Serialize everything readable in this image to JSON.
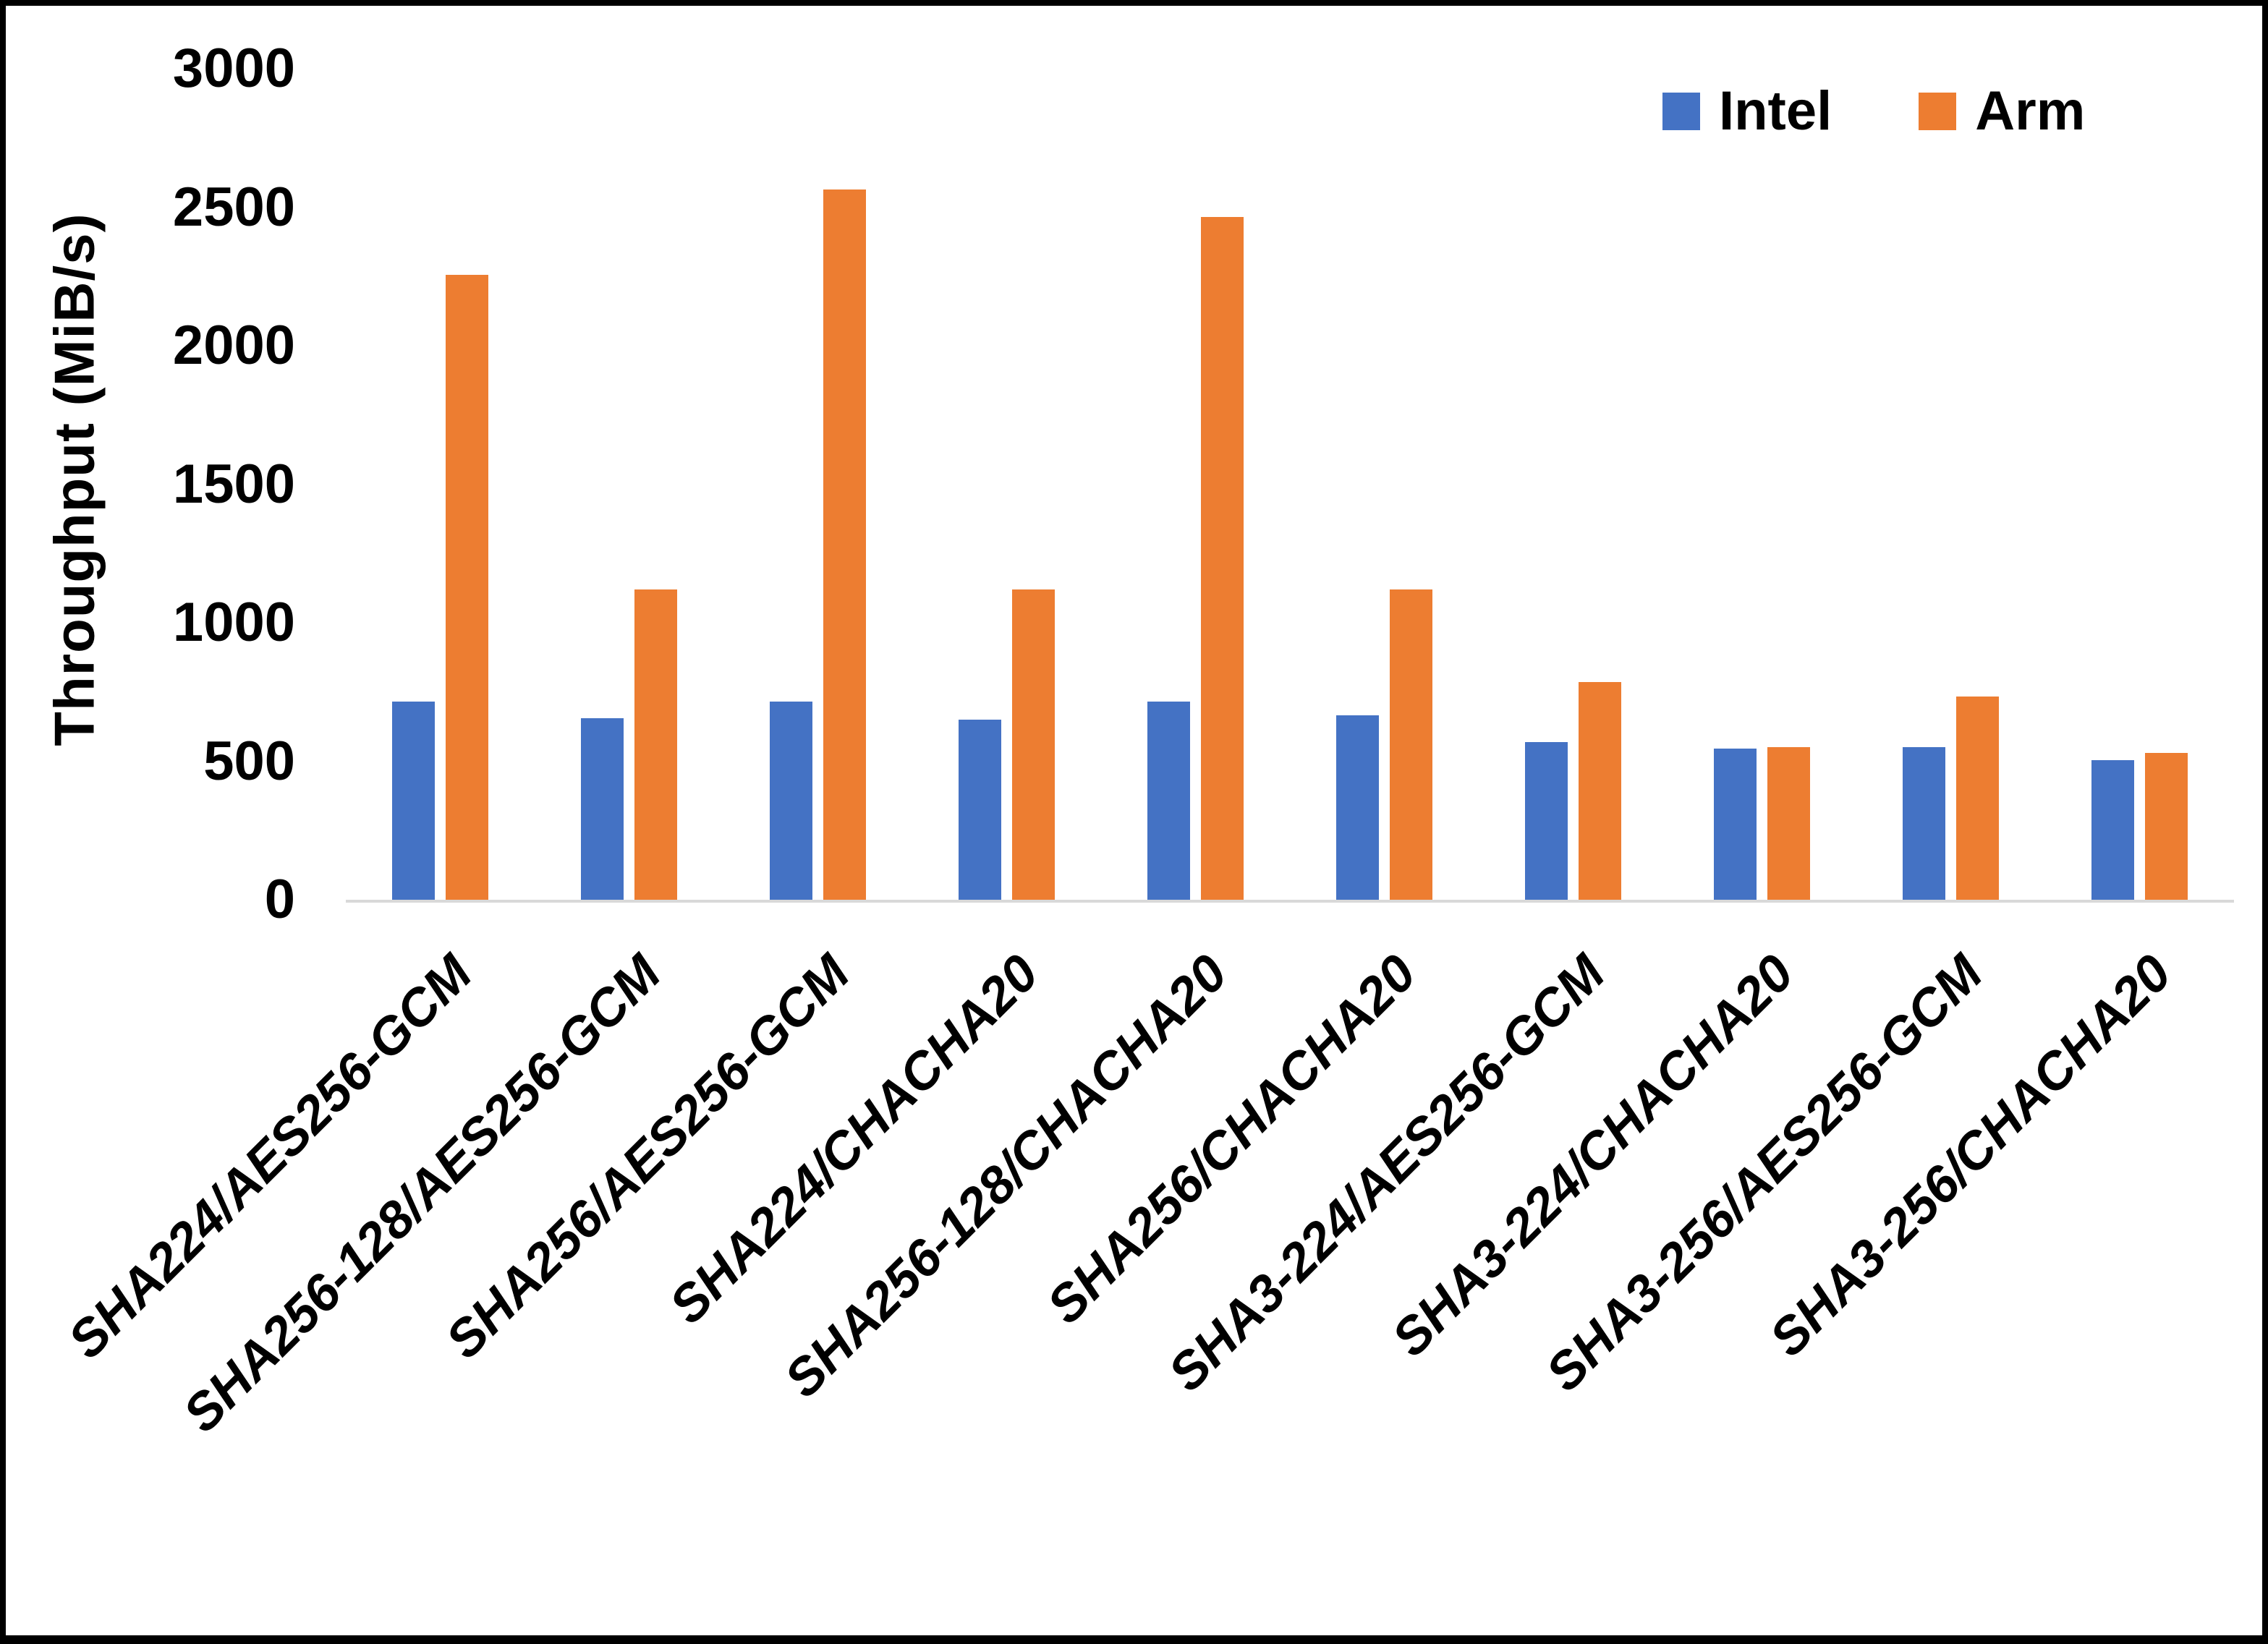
{
  "chart_data": {
    "type": "bar",
    "title": "",
    "ylabel": "Throughput (MiB/s)",
    "ylim": [
      0,
      3000
    ],
    "yticks": [
      0,
      500,
      1000,
      1500,
      2000,
      2500,
      3000
    ],
    "grid": false,
    "legend_position": "top-right",
    "categories": [
      "SHA224/AES256-GCM",
      "SHA256-128/AES256-GCM",
      "SHA256/AES256-GCM",
      "SHA224/CHACHA20",
      "SHA256-128/CHACHA20",
      "SHA256/CHACHA20",
      "SHA3-224/AES256-GCM",
      "SHA3-224/CHACHA20",
      "SHA3-256/AES256-GCM",
      "SHA3-256/CHACHA20"
    ],
    "series": [
      {
        "name": "Intel",
        "color": "#4472C4",
        "values": [
          715,
          655,
          715,
          650,
          715,
          665,
          570,
          545,
          550,
          505
        ]
      },
      {
        "name": "Arm",
        "color": "#ED7D31",
        "values": [
          2255,
          1120,
          2565,
          1120,
          2465,
          1120,
          785,
          550,
          735,
          530
        ]
      }
    ]
  },
  "colors": {
    "background": "#FFFFFF",
    "frame": "#000000",
    "axis_line": "#D9D9D9",
    "text": "#000000"
  }
}
